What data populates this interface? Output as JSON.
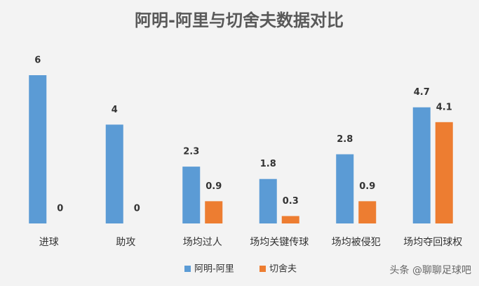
{
  "chart_data": {
    "type": "bar",
    "title": "阿明-阿里与切舍夫数据对比",
    "categories": [
      "进球",
      "助攻",
      "场均过人",
      "场均关键传球",
      "场均被侵犯",
      "场均夺回球权"
    ],
    "series": [
      {
        "name": "阿明-阿里",
        "color": "#5b9bd5",
        "values": [
          6,
          4,
          2.3,
          1.8,
          2.8,
          4.7
        ]
      },
      {
        "name": "切舍夫",
        "color": "#ed7d31",
        "values": [
          0,
          0,
          0.9,
          0.3,
          0.9,
          4.1
        ]
      }
    ],
    "legend": "bottom",
    "watermark": "头条 @聊聊足球吧"
  }
}
